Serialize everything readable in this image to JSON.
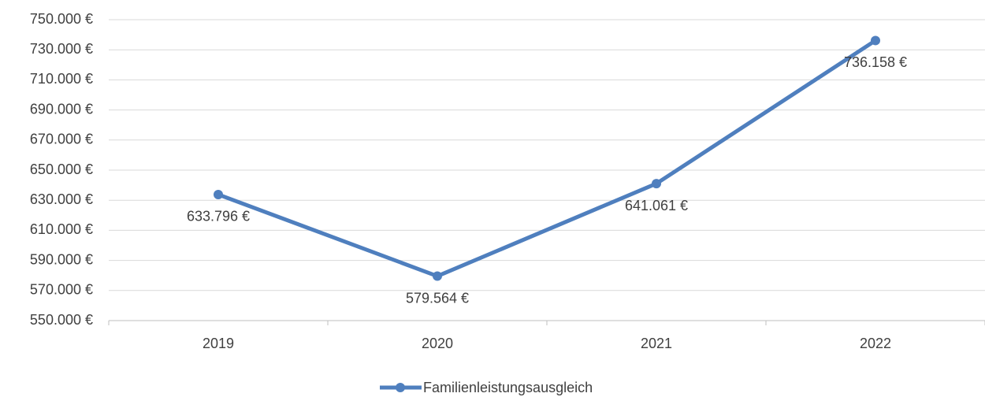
{
  "chart_data": {
    "type": "line",
    "categories": [
      "2019",
      "2020",
      "2021",
      "2022"
    ],
    "series": [
      {
        "name": "Familienleistungsausgleich",
        "color": "#4f7fbe",
        "values": [
          633796,
          579564,
          641061,
          736158
        ],
        "value_labels": [
          "633.796 €",
          "579.564 €",
          "641.061 €",
          "736.158 €"
        ]
      }
    ],
    "ylim": [
      550000,
      750000
    ],
    "yticks": [
      {
        "value": 550000,
        "label": "550.000 €"
      },
      {
        "value": 570000,
        "label": "570.000 €"
      },
      {
        "value": 590000,
        "label": "590.000 €"
      },
      {
        "value": 610000,
        "label": "610.000 €"
      },
      {
        "value": 630000,
        "label": "630.000 €"
      },
      {
        "value": 650000,
        "label": "650.000 €"
      },
      {
        "value": 670000,
        "label": "670.000 €"
      },
      {
        "value": 690000,
        "label": "690.000 €"
      },
      {
        "value": 710000,
        "label": "710.000 €"
      },
      {
        "value": 730000,
        "label": "730.000 €"
      },
      {
        "value": 750000,
        "label": "750.000 €"
      }
    ],
    "grid": true,
    "legend": "bottom"
  }
}
